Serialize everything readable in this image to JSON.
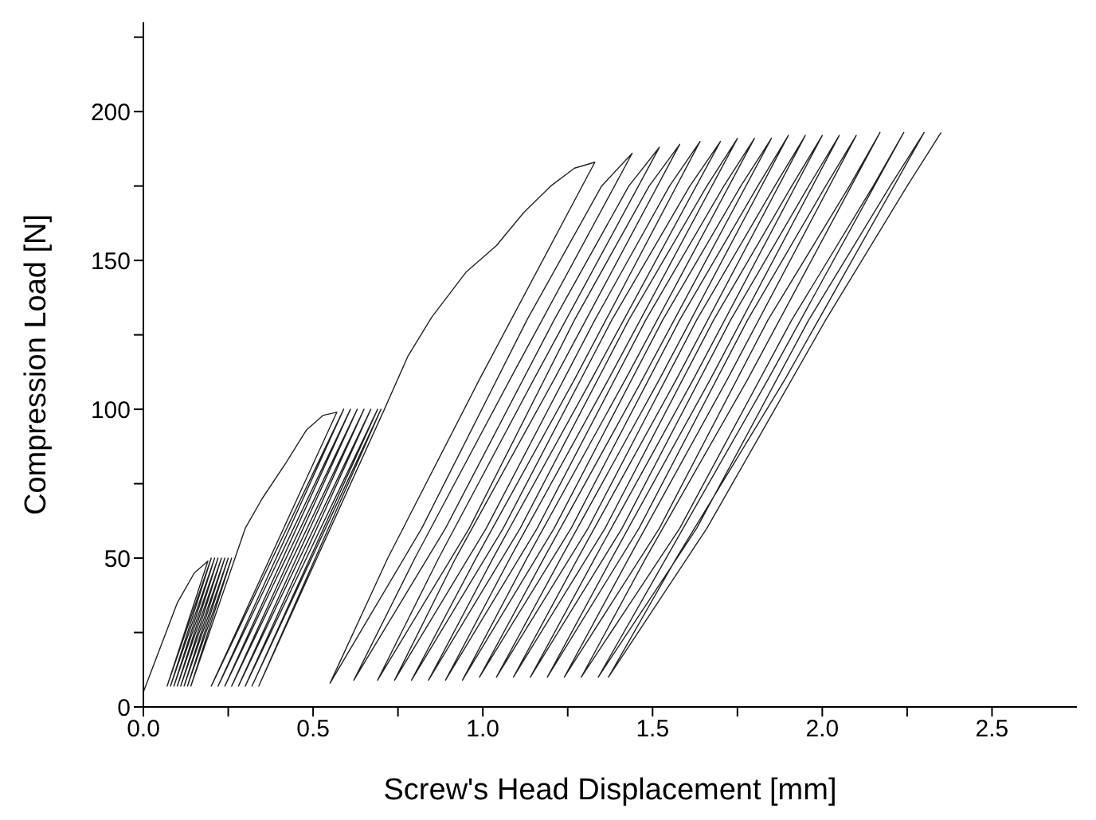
{
  "chart_data": {
    "type": "line",
    "xlabel": "Screw's Head Displacement [mm]",
    "ylabel": "Compression Load [N]",
    "xlim": [
      0,
      2.75
    ],
    "ylim": [
      0,
      230
    ],
    "xticks": [
      {
        "value": 0,
        "label": "0.0"
      },
      {
        "value": 0.25,
        "label": null
      },
      {
        "value": 0.5,
        "label": "0.5"
      },
      {
        "value": 0.75,
        "label": null
      },
      {
        "value": 1,
        "label": "1.0"
      },
      {
        "value": 1.25,
        "label": null
      },
      {
        "value": 1.5,
        "label": "1.5"
      },
      {
        "value": 1.75,
        "label": null
      },
      {
        "value": 2,
        "label": "2.0"
      },
      {
        "value": 2.25,
        "label": null
      },
      {
        "value": 2.5,
        "label": "2.5"
      }
    ],
    "yticks": [
      0,
      {
        "value": 25,
        "label": null
      },
      50,
      {
        "value": 75,
        "label": null
      },
      100,
      {
        "value": 125,
        "label": null
      },
      150,
      {
        "value": 175,
        "label": null
      },
      200,
      {
        "value": 225,
        "label": null
      }
    ],
    "grid": false,
    "marker": "none",
    "line_style": "solid",
    "series": [
      {
        "color": "#222222",
        "x": [
          0,
          0.05,
          0.1,
          0.15,
          0.19,
          0.07,
          0.2,
          0.08,
          0.21,
          0.09,
          0.22,
          0.1,
          0.23,
          0.11,
          0.24,
          0.12,
          0.25,
          0.13,
          0.26,
          0.14,
          0.27,
          0.3,
          0.35,
          0.42,
          0.48,
          0.53,
          0.57,
          0.2,
          0.59,
          0.22,
          0.61,
          0.24,
          0.63,
          0.26,
          0.65,
          0.28,
          0.67,
          0.3,
          0.69,
          0.32,
          0.7,
          0.34,
          0.71,
          0.78,
          0.85,
          0.95,
          1.04,
          1.12,
          1.2,
          1.27,
          1.33,
          0.99,
          0.72,
          0.55,
          0.82,
          1.13,
          1.35,
          1.44,
          1.08,
          0.8,
          0.62,
          0.89,
          1.21,
          1.43,
          1.52,
          1.15,
          0.87,
          0.69,
          0.96,
          1.27,
          1.49,
          1.58,
          1.21,
          0.92,
          0.74,
          1.01,
          1.33,
          1.55,
          1.64,
          1.27,
          0.98,
          0.79,
          1.06,
          1.38,
          1.61,
          1.7,
          1.32,
          1.03,
          0.84,
          1.11,
          1.43,
          1.66,
          1.75,
          1.37,
          1.08,
          0.89,
          1.16,
          1.48,
          1.71,
          1.8,
          1.42,
          1.13,
          0.94,
          1.21,
          1.53,
          1.76,
          1.85,
          1.47,
          1.18,
          0.99,
          1.26,
          1.58,
          1.81,
          1.9,
          1.52,
          1.23,
          1.04,
          1.31,
          1.63,
          1.86,
          1.95,
          1.57,
          1.28,
          1.09,
          1.36,
          1.68,
          1.91,
          2,
          1.62,
          1.33,
          1.14,
          1.41,
          1.73,
          1.96,
          2.05,
          1.67,
          1.38,
          1.19,
          1.46,
          1.78,
          2.01,
          2.1,
          1.72,
          1.43,
          1.24,
          1.52,
          1.84,
          2.08,
          2.17,
          1.78,
          1.48,
          1.29,
          1.58,
          1.91,
          2.15,
          2.24,
          1.84,
          1.54,
          1.34,
          1.63,
          1.96,
          2.2,
          2.3,
          1.89,
          1.57,
          1.37,
          1.66,
          2.01,
          2.25,
          2.35
        ],
        "values": [
          5,
          20,
          35,
          45,
          49,
          7,
          50,
          7,
          50,
          7,
          50,
          7,
          50,
          7,
          50,
          7,
          50,
          7,
          50,
          7,
          50,
          60,
          70,
          82,
          93,
          98,
          99,
          7,
          100,
          7,
          100,
          7,
          100,
          7,
          100,
          7,
          100,
          7,
          100,
          7,
          100,
          7,
          100,
          118,
          131,
          146,
          155,
          166,
          175,
          181,
          183,
          110,
          50,
          8,
          60,
          130,
          175,
          186,
          110,
          50,
          9,
          60,
          130,
          175,
          188,
          110,
          50,
          9,
          60,
          130,
          175,
          189,
          110,
          50,
          9,
          60,
          130,
          175,
          190,
          110,
          50,
          9,
          60,
          130,
          175,
          190,
          110,
          50,
          9,
          60,
          130,
          175,
          191,
          110,
          50,
          9,
          60,
          130,
          175,
          191,
          110,
          50,
          9,
          60,
          130,
          175,
          191,
          110,
          50,
          10,
          60,
          130,
          175,
          192,
          110,
          50,
          10,
          60,
          130,
          175,
          192,
          110,
          50,
          10,
          60,
          130,
          175,
          192,
          110,
          50,
          10,
          60,
          130,
          175,
          192,
          110,
          50,
          10,
          60,
          130,
          175,
          192,
          110,
          50,
          10,
          60,
          130,
          175,
          193,
          110,
          50,
          10,
          60,
          130,
          175,
          193,
          110,
          50,
          10,
          60,
          130,
          175,
          193,
          110,
          50,
          10,
          60,
          130,
          175,
          193
        ]
      }
    ]
  }
}
